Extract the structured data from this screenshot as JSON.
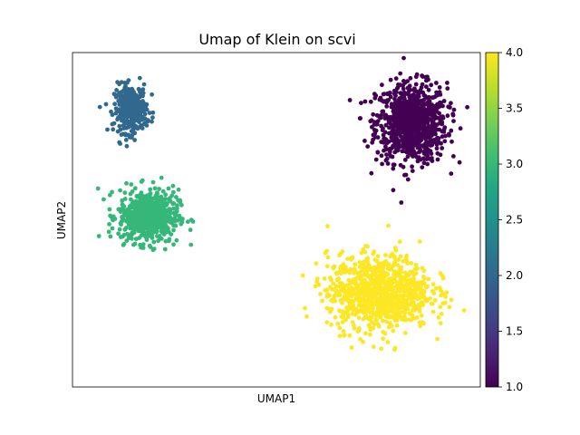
{
  "chart_data": {
    "type": "scatter",
    "title": "Umap of Klein on scvi",
    "xlabel": "UMAP1",
    "ylabel": "UMAP2",
    "x_ticks_shown": false,
    "y_ticks_shown": false,
    "grid": false,
    "legend": "none",
    "colorbar": {
      "colormap": "viridis",
      "range": [
        1.0,
        4.0
      ],
      "ticks": [
        "1.0",
        "1.5",
        "2.0",
        "2.5",
        "3.0",
        "3.5",
        "4.0"
      ]
    },
    "clusters": [
      {
        "value": 1.0,
        "color": "#440154",
        "approx_points": 900,
        "center": [
          8.2,
          7.0
        ],
        "spread": [
          1.3,
          1.5
        ]
      },
      {
        "value": 2.0,
        "color": "#31688e",
        "approx_points": 330,
        "center": [
          -7.3,
          7.8
        ],
        "spread": [
          0.6,
          0.9
        ]
      },
      {
        "value": 3.0,
        "color": "#35b779",
        "approx_points": 620,
        "center": [
          -6.3,
          1.7
        ],
        "spread": [
          1.1,
          1.0
        ]
      },
      {
        "value": 4.0,
        "color": "#fde725",
        "approx_points": 950,
        "center": [
          6.4,
          -2.6
        ],
        "spread": [
          1.9,
          1.4
        ]
      }
    ]
  }
}
